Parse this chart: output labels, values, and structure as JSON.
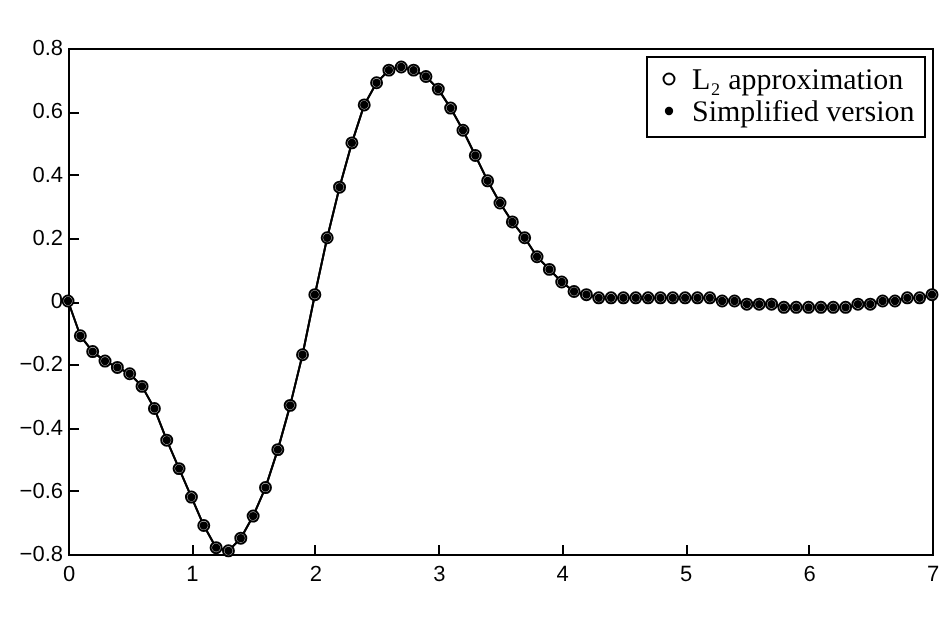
{
  "chart_data": {
    "type": "line",
    "x": [
      0,
      0.1,
      0.2,
      0.3,
      0.4,
      0.5,
      0.6,
      0.7,
      0.8,
      0.9,
      1.0,
      1.1,
      1.2,
      1.3,
      1.4,
      1.5,
      1.6,
      1.7,
      1.8,
      1.9,
      2.0,
      2.1,
      2.2,
      2.3,
      2.4,
      2.5,
      2.6,
      2.7,
      2.8,
      2.9,
      3.0,
      3.1,
      3.2,
      3.3,
      3.4,
      3.5,
      3.6,
      3.7,
      3.8,
      3.9,
      4.0,
      4.1,
      4.2,
      4.3,
      4.4,
      4.5,
      4.6,
      4.7,
      4.8,
      4.9,
      5.0,
      5.1,
      5.2,
      5.3,
      5.4,
      5.5,
      5.6,
      5.7,
      5.8,
      5.9,
      6.0,
      6.1,
      6.2,
      6.3,
      6.4,
      6.5,
      6.6,
      6.7,
      6.8,
      6.9,
      7.0
    ],
    "series": [
      {
        "name": "L₂ approximation",
        "color": "#000000",
        "values": [
          0,
          -0.11,
          -0.16,
          -0.19,
          -0.21,
          -0.23,
          -0.27,
          -0.34,
          -0.44,
          -0.53,
          -0.62,
          -0.71,
          -0.78,
          -0.79,
          -0.75,
          -0.68,
          -0.59,
          -0.47,
          -0.33,
          -0.17,
          0.02,
          0.2,
          0.36,
          0.5,
          0.62,
          0.69,
          0.73,
          0.74,
          0.73,
          0.71,
          0.67,
          0.61,
          0.54,
          0.46,
          0.38,
          0.31,
          0.25,
          0.2,
          0.14,
          0.1,
          0.06,
          0.03,
          0.02,
          0.01,
          0.01,
          0.01,
          0.01,
          0.01,
          0.01,
          0.01,
          0.01,
          0.01,
          0.01,
          0.0,
          0.0,
          -0.01,
          -0.01,
          -0.01,
          -0.02,
          -0.02,
          -0.02,
          -0.02,
          -0.02,
          -0.02,
          -0.01,
          -0.01,
          0.0,
          0.0,
          0.01,
          0.01,
          0.02
        ]
      },
      {
        "name": "Simplified version",
        "color": "#000000",
        "values": [
          0,
          -0.11,
          -0.16,
          -0.19,
          -0.21,
          -0.23,
          -0.27,
          -0.34,
          -0.44,
          -0.53,
          -0.62,
          -0.71,
          -0.78,
          -0.79,
          -0.75,
          -0.68,
          -0.59,
          -0.47,
          -0.33,
          -0.17,
          0.02,
          0.2,
          0.36,
          0.5,
          0.62,
          0.69,
          0.73,
          0.74,
          0.73,
          0.71,
          0.67,
          0.61,
          0.54,
          0.46,
          0.38,
          0.31,
          0.25,
          0.2,
          0.14,
          0.1,
          0.06,
          0.03,
          0.02,
          0.01,
          0.01,
          0.01,
          0.01,
          0.01,
          0.01,
          0.01,
          0.01,
          0.01,
          0.01,
          0.0,
          0.0,
          -0.01,
          -0.01,
          -0.01,
          -0.02,
          -0.02,
          -0.02,
          -0.02,
          -0.02,
          -0.02,
          -0.01,
          -0.01,
          0.0,
          0.0,
          0.01,
          0.01,
          0.02
        ]
      }
    ],
    "xlim": [
      0,
      7
    ],
    "xticks": [
      0,
      1,
      2,
      3,
      4,
      5,
      6,
      7
    ],
    "ylim": [
      -0.8,
      0.8
    ],
    "yticks": [
      -0.8,
      -0.6,
      -0.4,
      -0.2,
      0,
      0.2,
      0.4,
      0.6,
      0.8
    ],
    "marker": "circle",
    "legend": "top right"
  }
}
